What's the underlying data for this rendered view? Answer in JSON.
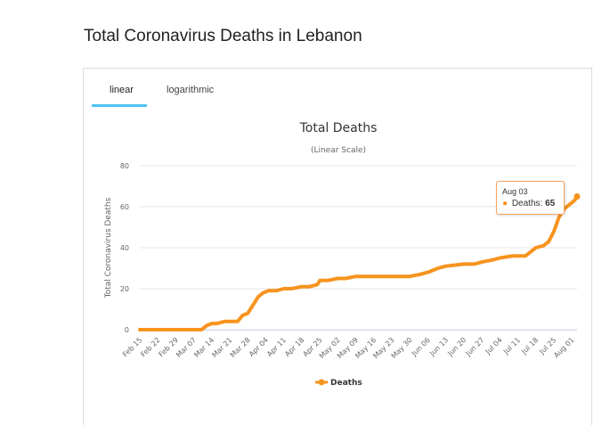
{
  "page": {
    "title": "Total Coronavirus Deaths in Lebanon"
  },
  "tabs": [
    {
      "label": "linear",
      "active": true
    },
    {
      "label": "logarithmic",
      "active": false
    }
  ],
  "colors": {
    "series": "#f7931e",
    "tab_underline": "#4fc3f7",
    "grid": "#e6e6e6"
  },
  "tooltip": {
    "date": "Aug 03",
    "series_label": "Deaths:",
    "value": "65"
  },
  "chart_data": {
    "type": "line",
    "title": "Total Deaths",
    "subtitle": "(Linear Scale)",
    "ylabel": "Total Coronavirus Deaths",
    "xlabel": "",
    "ylim": [
      0,
      80
    ],
    "yticks": [
      0,
      20,
      40,
      60,
      80
    ],
    "xticks": [
      "Feb 15",
      "Feb 22",
      "Feb 29",
      "Mar 07",
      "Mar 14",
      "Mar 21",
      "Mar 28",
      "Apr 04",
      "Apr 11",
      "Apr 18",
      "Apr 25",
      "May 02",
      "May 09",
      "May 16",
      "May 23",
      "May 30",
      "Jun 06",
      "Jun 13",
      "Jun 20",
      "Jun 27",
      "Jul 04",
      "Jul 11",
      "Jul 18",
      "Jul 25",
      "Aug 01"
    ],
    "grid": true,
    "legend": "bottom-center",
    "series": [
      {
        "name": "Deaths",
        "x": [
          "Feb 15",
          "Feb 22",
          "Feb 29",
          "Mar 07",
          "Mar 10",
          "Mar 12",
          "Mar 14",
          "Mar 16",
          "Mar 19",
          "Mar 21",
          "Mar 24",
          "Mar 26",
          "Mar 28",
          "Mar 30",
          "Apr 01",
          "Apr 03",
          "Apr 05",
          "Apr 08",
          "Apr 11",
          "Apr 14",
          "Apr 18",
          "Apr 21",
          "Apr 24",
          "Apr 25",
          "Apr 28",
          "May 02",
          "May 05",
          "May 09",
          "May 16",
          "May 23",
          "May 30",
          "Jun 03",
          "Jun 06",
          "Jun 10",
          "Jun 13",
          "Jun 20",
          "Jun 24",
          "Jun 27",
          "Jul 01",
          "Jul 04",
          "Jul 09",
          "Jul 11",
          "Jul 14",
          "Jul 16",
          "Jul 18",
          "Jul 21",
          "Jul 23",
          "Jul 25",
          "Jul 27",
          "Jul 29",
          "Jul 31",
          "Aug 01",
          "Aug 02",
          "Aug 03"
        ],
        "values": [
          0,
          0,
          0,
          0,
          0,
          2,
          3,
          3,
          4,
          4,
          4,
          7,
          8,
          12,
          16,
          18,
          19,
          19,
          20,
          20,
          21,
          21,
          22,
          24,
          24,
          25,
          25,
          26,
          26,
          26,
          26,
          27,
          28,
          30,
          31,
          32,
          32,
          33,
          34,
          35,
          36,
          36,
          36,
          38,
          40,
          41,
          43,
          48,
          55,
          59,
          61,
          62,
          63,
          65
        ]
      }
    ]
  }
}
